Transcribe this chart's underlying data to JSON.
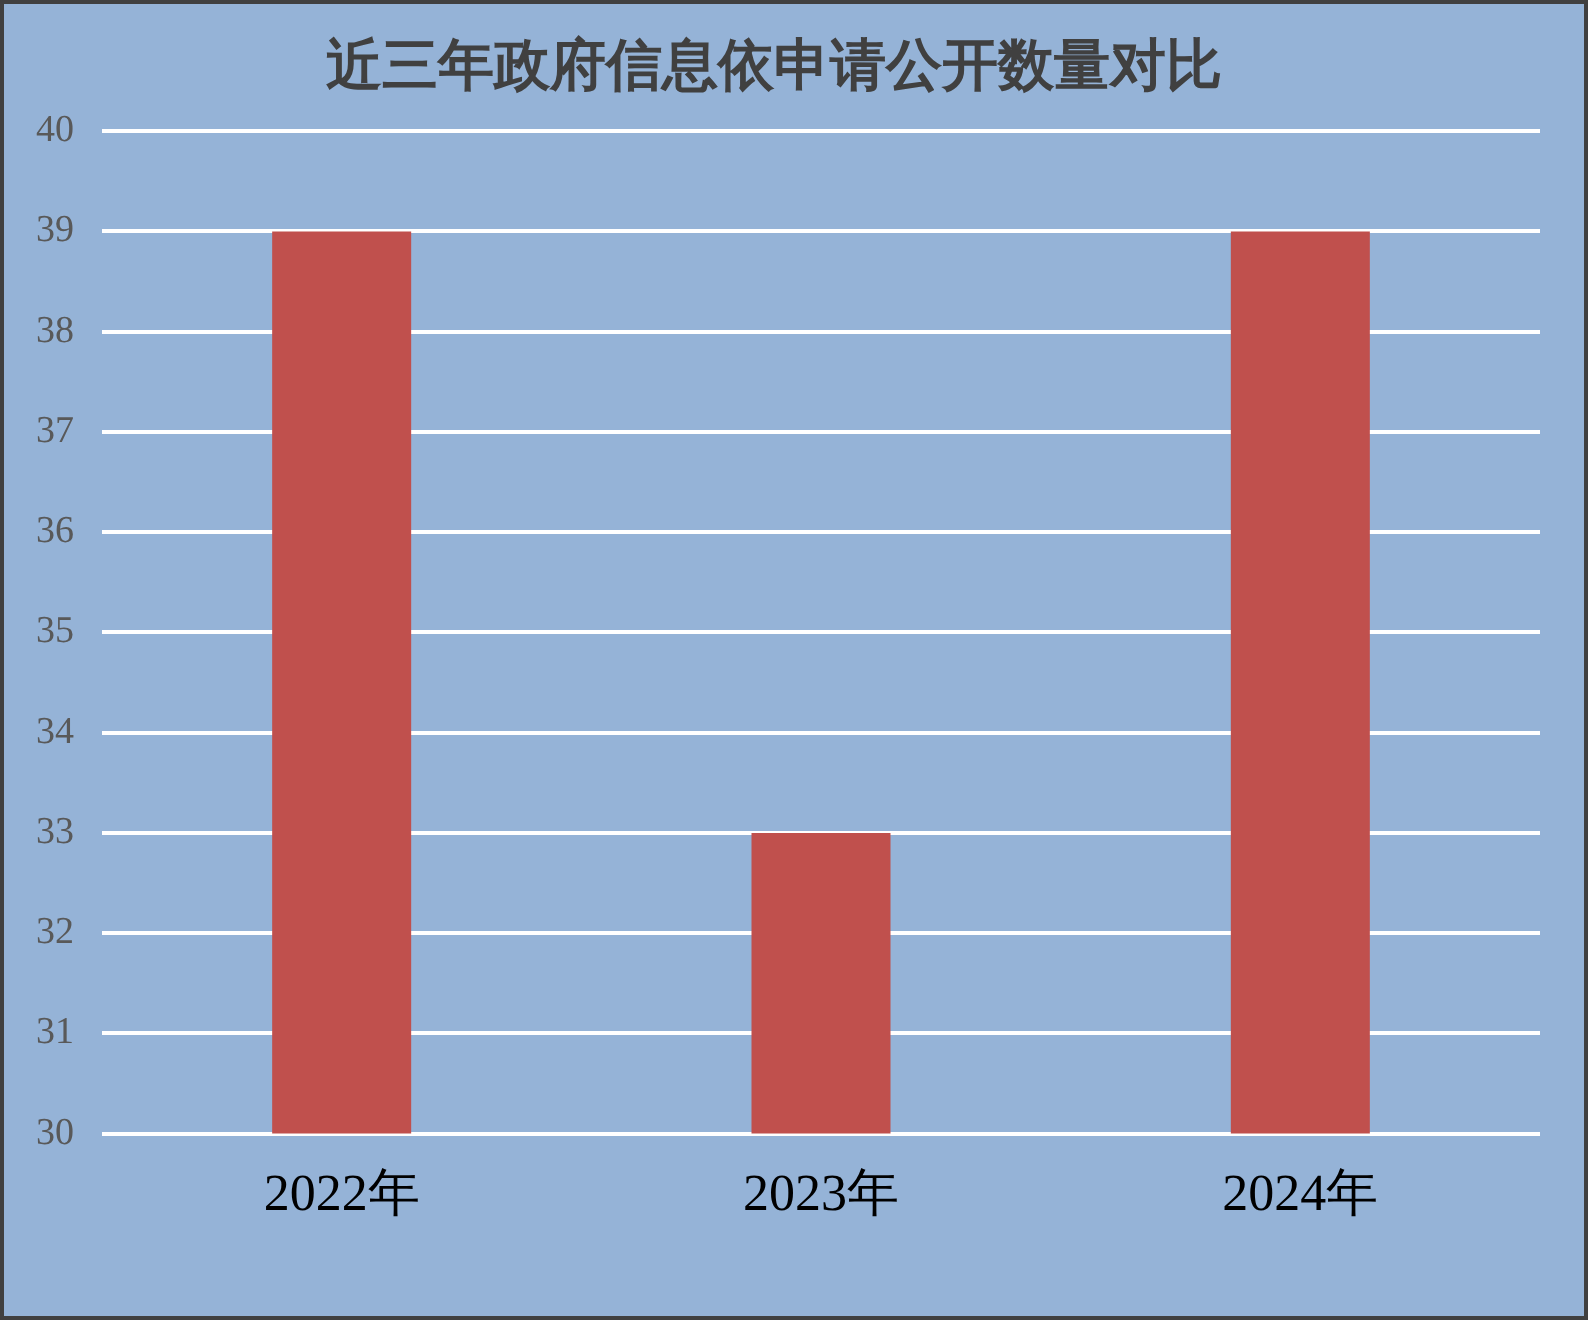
{
  "chart_data": {
    "type": "bar",
    "title": "近三年政府信息依申请公开数量对比",
    "categories": [
      "2022年",
      "2023年",
      "2024年"
    ],
    "values": [
      39,
      33,
      39
    ],
    "color": "#c0504d",
    "ylim": [
      30,
      40
    ],
    "yticks": [
      30,
      31,
      32,
      33,
      34,
      35,
      36,
      37,
      38,
      39,
      40
    ],
    "grid": "y"
  }
}
